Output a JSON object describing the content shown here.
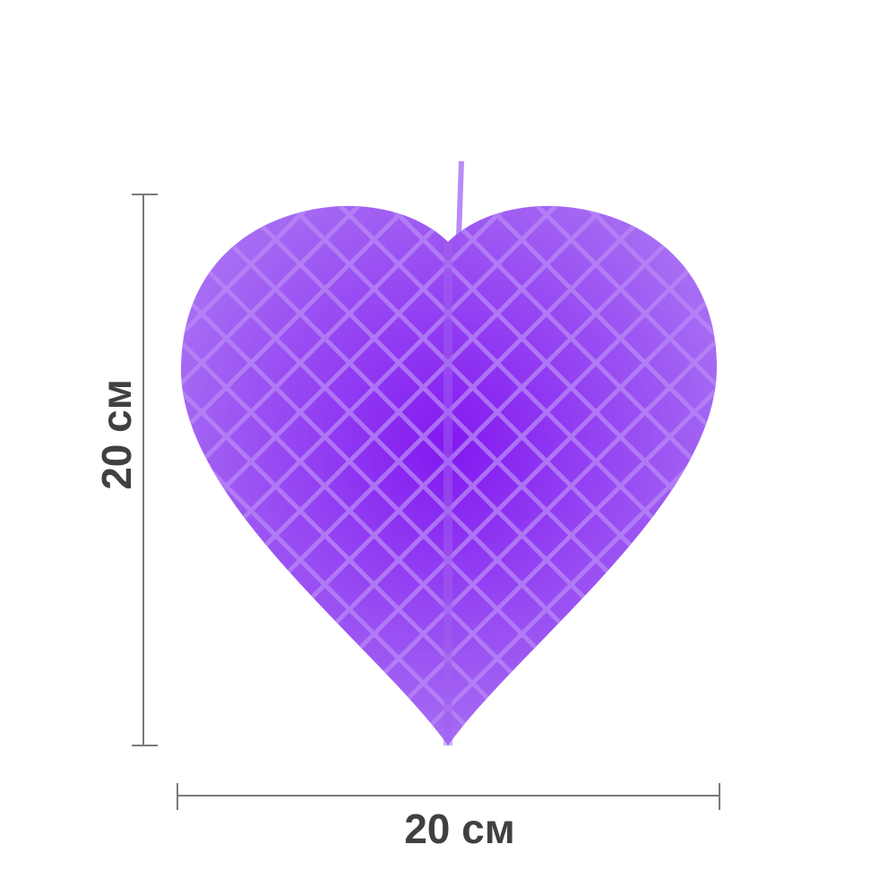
{
  "product": {
    "name": "heart-honeycomb-decoration",
    "color": "#9a4cf0",
    "center_color": "#7f1ff0"
  },
  "dimensions": {
    "height_label": "20 см",
    "width_label": "20 см",
    "line_color": "#7a7a7a",
    "text_color": "#404040"
  }
}
